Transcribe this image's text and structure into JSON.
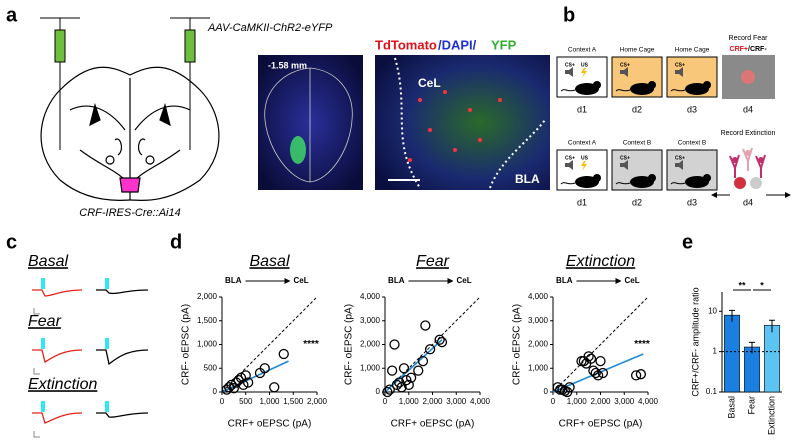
{
  "panel_labels": [
    "a",
    "b",
    "c",
    "d",
    "e"
  ],
  "panel_a": {
    "virus": "AAV-CaMKII-ChR2-eYFP",
    "mouse": "CRF-IRES-Cre::Ai14",
    "coordinate": "-1.58 mm",
    "stain": [
      "TdTomato",
      "/DAPI/",
      "YFP"
    ],
    "regions": [
      "CeL",
      "BLA"
    ]
  },
  "panel_b": {
    "row1": {
      "contexts": [
        "Context A",
        "Home Cage",
        "Home Cage"
      ],
      "record": "Record Fear",
      "record_cells": [
        "CRF+",
        "/CRF-"
      ],
      "days": [
        "d1",
        "d2",
        "d3",
        "d4"
      ]
    },
    "row2": {
      "contexts": [
        "Context A",
        "Context B",
        "Context B"
      ],
      "record": "Record Extinction",
      "days": [
        "d1",
        "d2",
        "d3",
        "d4"
      ]
    },
    "stimuli": [
      "CS+",
      "US"
    ]
  },
  "panel_c": {
    "conditions": [
      "Basal",
      "Fear",
      "Extinction"
    ]
  },
  "chart_data": [
    {
      "type": "scatter",
      "title": "Basal",
      "pathway": [
        "BLA",
        "CeL"
      ],
      "xlabel": "CRF+ oEPSC (pA)",
      "ylabel": "CRF- oEPSC (pA)",
      "annotation": "****",
      "xlim": [
        0,
        2000
      ],
      "ylim": [
        0,
        2000
      ],
      "xticks": [
        0,
        500,
        {
          "value": 1000,
          "label": "1,000"
        },
        {
          "value": 1500,
          "label": "1,500"
        },
        {
          "value": 2000,
          "label": "2,000"
        }
      ],
      "yticks": [
        0,
        500,
        {
          "value": 1000,
          "label": "1,000"
        },
        {
          "value": 1500,
          "label": "1,500"
        },
        {
          "value": 2000,
          "label": "2,000"
        }
      ],
      "series": [
        {
          "color": "#000000",
          "x": [
            100,
            150,
            200,
            250,
            300,
            350,
            400,
            450,
            500,
            550,
            800,
            900,
            1100,
            1300
          ],
          "values": [
            50,
            100,
            150,
            80,
            200,
            250,
            300,
            150,
            350,
            200,
            400,
            500,
            100,
            800
          ]
        }
      ],
      "lines": [
        {
          "color": "#000000",
          "style": "dashed",
          "x": [
            0,
            2000
          ],
          "y": [
            0,
            2000
          ]
        },
        {
          "color": "#1f8ad4",
          "style": "solid",
          "x": [
            0,
            1400
          ],
          "y": [
            0,
            650
          ]
        }
      ]
    },
    {
      "type": "scatter",
      "title": "Fear",
      "pathway": [
        "BLA",
        "CeL"
      ],
      "xlabel": "CRF+ oEPSC (pA)",
      "ylabel": "CRF- oEPSC (pA)",
      "xlim": [
        0,
        4000
      ],
      "ylim": [
        0,
        4000
      ],
      "xticks": [
        0,
        {
          "value": 1000,
          "label": "1,000"
        },
        {
          "value": 2000,
          "label": "2,000"
        },
        {
          "value": 3000,
          "label": "3,000"
        },
        {
          "value": 4000,
          "label": "4,000"
        }
      ],
      "yticks": [
        0,
        {
          "value": 1000,
          "label": "1,000"
        },
        {
          "value": 2000,
          "label": "2,000"
        },
        {
          "value": 3000,
          "label": "3,000"
        },
        {
          "value": 4000,
          "label": "4,000"
        }
      ],
      "series": [
        {
          "color": "#000000",
          "x": [
            100,
            200,
            300,
            400,
            500,
            600,
            700,
            800,
            900,
            1000,
            1100,
            1400,
            1600,
            1700,
            1900,
            2300,
            2400
          ],
          "values": [
            0,
            100,
            900,
            2000,
            300,
            400,
            200,
            1000,
            500,
            300,
            600,
            900,
            1300,
            2800,
            1800,
            2200,
            2100
          ]
        }
      ],
      "lines": [
        {
          "color": "#000000",
          "style": "dashed",
          "x": [
            0,
            4000
          ],
          "y": [
            0,
            4000
          ]
        },
        {
          "color": "#1f8ad4",
          "style": "solid",
          "x": [
            0,
            2400
          ],
          "y": [
            0,
            2200
          ]
        }
      ]
    },
    {
      "type": "scatter",
      "title": "Extinction",
      "pathway": [
        "BLA",
        "CeL"
      ],
      "xlabel": "CRF+ oEPSC (pA)",
      "ylabel": "CRF- oEPSC (pA)",
      "annotation": "****",
      "xlim": [
        0,
        4000
      ],
      "ylim": [
        0,
        4000
      ],
      "xticks": [
        0,
        {
          "value": 1000,
          "label": "1,000"
        },
        {
          "value": 2000,
          "label": "2,000"
        },
        {
          "value": 3000,
          "label": "3,000"
        },
        {
          "value": 4000,
          "label": "4,000"
        }
      ],
      "yticks": [
        0,
        {
          "value": 1000,
          "label": "1,000"
        },
        {
          "value": 2000,
          "label": "2,000"
        },
        {
          "value": 3000,
          "label": "3,000"
        },
        {
          "value": 4000,
          "label": "4,000"
        }
      ],
      "series": [
        {
          "color": "#000000",
          "x": [
            200,
            300,
            400,
            500,
            600,
            700,
            1200,
            1300,
            1400,
            1500,
            1600,
            1700,
            1800,
            1900,
            2000,
            2100,
            3500,
            3700
          ],
          "values": [
            200,
            100,
            100,
            50,
            0,
            200,
            1300,
            1300,
            1200,
            1500,
            1400,
            900,
            800,
            700,
            1300,
            800,
            700,
            750
          ]
        }
      ],
      "lines": [
        {
          "color": "#000000",
          "style": "dashed",
          "x": [
            0,
            4000
          ],
          "y": [
            0,
            4000
          ]
        },
        {
          "color": "#1f8ad4",
          "style": "solid",
          "x": [
            0,
            3800
          ],
          "y": [
            0,
            1600
          ]
        }
      ]
    },
    {
      "type": "bar",
      "ylabel": "CRF+/CRF- amplitude ratio",
      "log_scale": true,
      "categories": [
        "Basal",
        "Fear",
        "Extinction"
      ],
      "values": [
        8,
        1.3,
        4.5
      ],
      "errors": [
        2.5,
        0.4,
        1.5
      ],
      "colors": [
        "#1a7fe0",
        "#1a7fe0",
        "#5cc4f2"
      ],
      "ylim": [
        0.1,
        30
      ],
      "yticks": [
        0.1,
        1,
        10
      ],
      "reference_line": 1,
      "significance": [
        {
          "pair": [
            0,
            1
          ],
          "label": "**"
        },
        {
          "pair": [
            1,
            2
          ],
          "label": "*"
        }
      ]
    }
  ]
}
